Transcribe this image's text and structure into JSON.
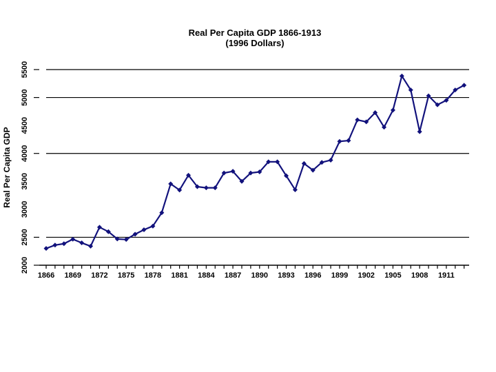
{
  "chart_data": {
    "type": "line",
    "title": "Real Per Capita GDP 1866-1913",
    "subtitle": "(1996 Dollars)",
    "ylabel": "Real Per Capita GDP",
    "xlabel": "",
    "ylim": [
      2000,
      5500
    ],
    "y_ticks": [
      2000,
      2500,
      3000,
      3500,
      4000,
      4500,
      5000,
      5500
    ],
    "gridline_values": [
      2500,
      4000,
      5000,
      5500
    ],
    "y_axis_tick_values": [
      2000,
      2500,
      4000,
      5000,
      5500
    ],
    "x_tick_label_years": [
      1866,
      1869,
      1872,
      1875,
      1878,
      1881,
      1884,
      1887,
      1890,
      1893,
      1896,
      1899,
      1902,
      1905,
      1908,
      1911
    ],
    "legend": "none",
    "grid": "horizontal-partial",
    "marker": "diamond",
    "line_color": "#12127c",
    "axis_color": "#000000",
    "x": [
      1866,
      1867,
      1868,
      1869,
      1870,
      1871,
      1872,
      1873,
      1874,
      1875,
      1876,
      1877,
      1878,
      1879,
      1880,
      1881,
      1882,
      1883,
      1884,
      1885,
      1886,
      1887,
      1888,
      1889,
      1890,
      1891,
      1892,
      1893,
      1894,
      1895,
      1896,
      1897,
      1898,
      1899,
      1900,
      1901,
      1902,
      1903,
      1904,
      1905,
      1906,
      1907,
      1908,
      1909,
      1910,
      1911,
      1912,
      1913
    ],
    "values": [
      2300,
      2360,
      2385,
      2465,
      2400,
      2340,
      2680,
      2600,
      2470,
      2460,
      2555,
      2635,
      2700,
      2940,
      3455,
      3345,
      3610,
      3405,
      3385,
      3385,
      3650,
      3680,
      3500,
      3650,
      3670,
      3850,
      3850,
      3600,
      3350,
      3820,
      3700,
      3840,
      3880,
      4215,
      4230,
      4600,
      4565,
      4730,
      4470,
      4775,
      5385,
      5135,
      4390,
      5030,
      4870,
      4950,
      5135,
      5220
    ]
  }
}
